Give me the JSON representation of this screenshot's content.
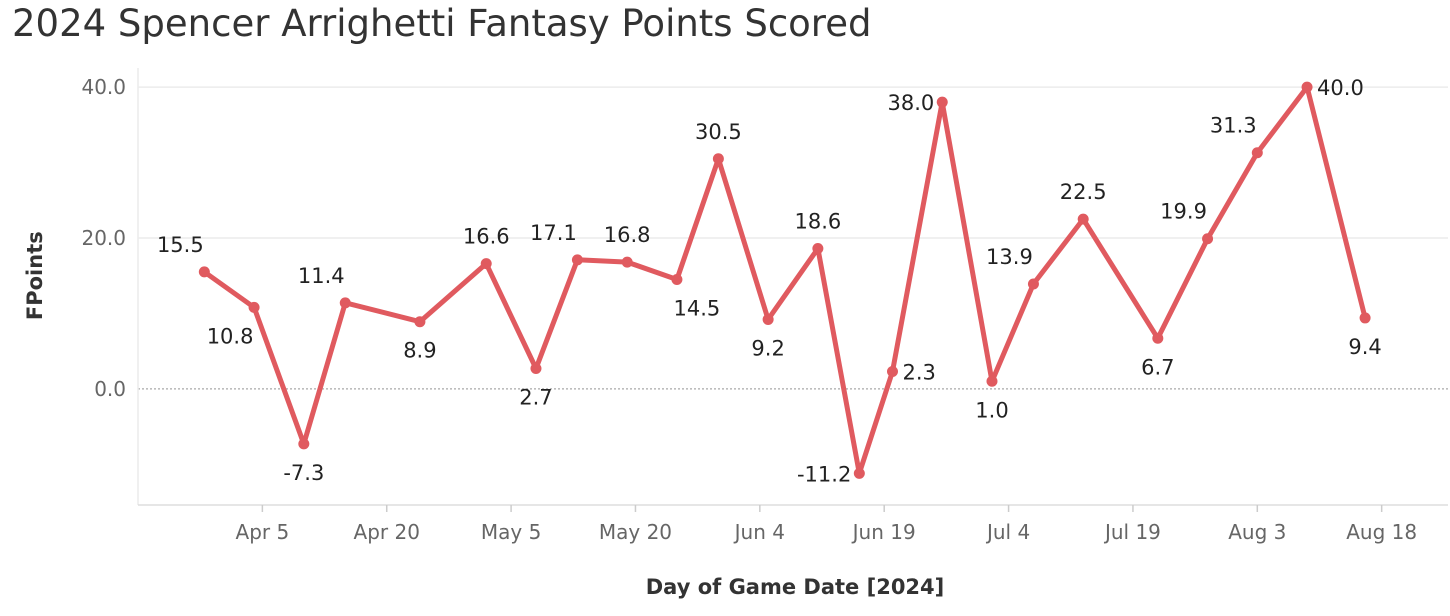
{
  "title": "2024 Spencer Arrighetti Fantasy Points Scored",
  "colors": {
    "line": "#e05a5f",
    "grid": "#ececec",
    "zero_line": "#a8a8a8",
    "axis": "#dddddd"
  },
  "chart_data": {
    "type": "line",
    "title": "2024 Spencer Arrighetti Fantasy Points Scored",
    "xlabel": "Day of Game Date [2024]",
    "ylabel": "FPoints",
    "ylim": [
      -15,
      42
    ],
    "yticks": [
      0,
      20,
      40
    ],
    "ytick_labels": [
      "0.0",
      "20.0",
      "40.0"
    ],
    "xlim": [
      "2024-03-21",
      "2024-08-26"
    ],
    "xticks": [
      "2024-04-05",
      "2024-04-20",
      "2024-05-05",
      "2024-05-20",
      "2024-06-04",
      "2024-06-19",
      "2024-07-04",
      "2024-07-19",
      "2024-08-03",
      "2024-08-18"
    ],
    "xtick_labels": [
      "Apr 5",
      "Apr 20",
      "May 5",
      "May 20",
      "Jun 4",
      "Jun 19",
      "Jul 4",
      "Jul 19",
      "Aug 3",
      "Aug 18"
    ],
    "grid": true,
    "series": [
      {
        "points": [
          {
            "x": "2024-03-29",
            "y": 15.5,
            "label": "15.5",
            "pos": "above-left"
          },
          {
            "x": "2024-04-04",
            "y": 10.8,
            "label": "10.8",
            "pos": "below-left"
          },
          {
            "x": "2024-04-10",
            "y": -7.3,
            "label": "-7.3",
            "pos": "below"
          },
          {
            "x": "2024-04-15",
            "y": 11.4,
            "label": "11.4",
            "pos": "above-left"
          },
          {
            "x": "2024-04-24",
            "y": 8.9,
            "label": "8.9",
            "pos": "below"
          },
          {
            "x": "2024-05-02",
            "y": 16.6,
            "label": "16.6",
            "pos": "above"
          },
          {
            "x": "2024-05-08",
            "y": 2.7,
            "label": "2.7",
            "pos": "below"
          },
          {
            "x": "2024-05-13",
            "y": 17.1,
            "label": "17.1",
            "pos": "above-left"
          },
          {
            "x": "2024-05-19",
            "y": 16.8,
            "label": "16.8",
            "pos": "above"
          },
          {
            "x": "2024-05-25",
            "y": 14.5,
            "label": "14.5",
            "pos": "below-right"
          },
          {
            "x": "2024-05-30",
            "y": 30.5,
            "label": "30.5",
            "pos": "above"
          },
          {
            "x": "2024-06-05",
            "y": 9.2,
            "label": "9.2",
            "pos": "below"
          },
          {
            "x": "2024-06-11",
            "y": 18.6,
            "label": "18.6",
            "pos": "above"
          },
          {
            "x": "2024-06-16",
            "y": -11.2,
            "label": "-11.2",
            "pos": "left"
          },
          {
            "x": "2024-06-20",
            "y": 2.3,
            "label": "2.3",
            "pos": "right"
          },
          {
            "x": "2024-06-26",
            "y": 38.0,
            "label": "38.0",
            "pos": "left"
          },
          {
            "x": "2024-07-02",
            "y": 1.0,
            "label": "1.0",
            "pos": "below"
          },
          {
            "x": "2024-07-07",
            "y": 13.9,
            "label": "13.9",
            "pos": "above-left"
          },
          {
            "x": "2024-07-13",
            "y": 22.5,
            "label": "22.5",
            "pos": "above"
          },
          {
            "x": "2024-07-22",
            "y": 6.7,
            "label": "6.7",
            "pos": "below"
          },
          {
            "x": "2024-07-28",
            "y": 19.9,
            "label": "19.9",
            "pos": "above-left"
          },
          {
            "x": "2024-08-03",
            "y": 31.3,
            "label": "31.3",
            "pos": "above-left"
          },
          {
            "x": "2024-08-09",
            "y": 40.0,
            "label": "40.0",
            "pos": "right"
          },
          {
            "x": "2024-08-16",
            "y": 9.4,
            "label": "9.4",
            "pos": "below"
          }
        ]
      }
    ]
  }
}
